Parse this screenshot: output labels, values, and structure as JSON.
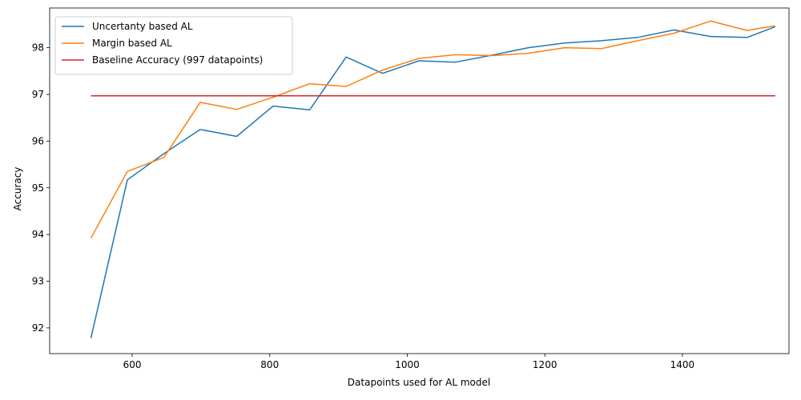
{
  "chart_data": {
    "type": "line",
    "title": "",
    "xlabel": "Datapoints used for AL model",
    "ylabel": "Accuracy",
    "xlim": [
      480,
      1555
    ],
    "ylim": [
      91.45,
      98.85
    ],
    "xticks": [
      600,
      800,
      1000,
      1200,
      1400
    ],
    "yticks": [
      92,
      93,
      94,
      95,
      96,
      97,
      98
    ],
    "grid": false,
    "legend_position": "top-left",
    "series": [
      {
        "name": "Uncertanty based AL",
        "color": "#1f77b4",
        "x": [
          540,
          593,
          646,
          699,
          752,
          805,
          858,
          911,
          964,
          1017,
          1070,
          1123,
          1176,
          1229,
          1282,
          1335,
          1388,
          1441,
          1494,
          1535
        ],
        "y": [
          91.78,
          95.17,
          95.73,
          96.25,
          96.1,
          96.75,
          96.67,
          97.8,
          97.45,
          97.72,
          97.69,
          97.84,
          98.0,
          98.1,
          98.15,
          98.22,
          98.38,
          98.24,
          98.22,
          98.45
        ]
      },
      {
        "name": "Margin based AL",
        "color": "#ff7f0e",
        "x": [
          540,
          593,
          646,
          699,
          752,
          805,
          858,
          911,
          964,
          1017,
          1070,
          1123,
          1176,
          1229,
          1282,
          1335,
          1388,
          1441,
          1494,
          1535
        ],
        "y": [
          93.92,
          95.35,
          95.65,
          96.83,
          96.68,
          96.94,
          97.23,
          97.17,
          97.52,
          97.77,
          97.85,
          97.83,
          97.88,
          98.0,
          97.98,
          98.15,
          98.31,
          98.57,
          98.37,
          98.47
        ]
      },
      {
        "name": "Baseline Accuracy (997 datapoints)",
        "color": "#d62728",
        "x": [
          540,
          1535
        ],
        "y": [
          96.97,
          96.97
        ]
      }
    ]
  }
}
